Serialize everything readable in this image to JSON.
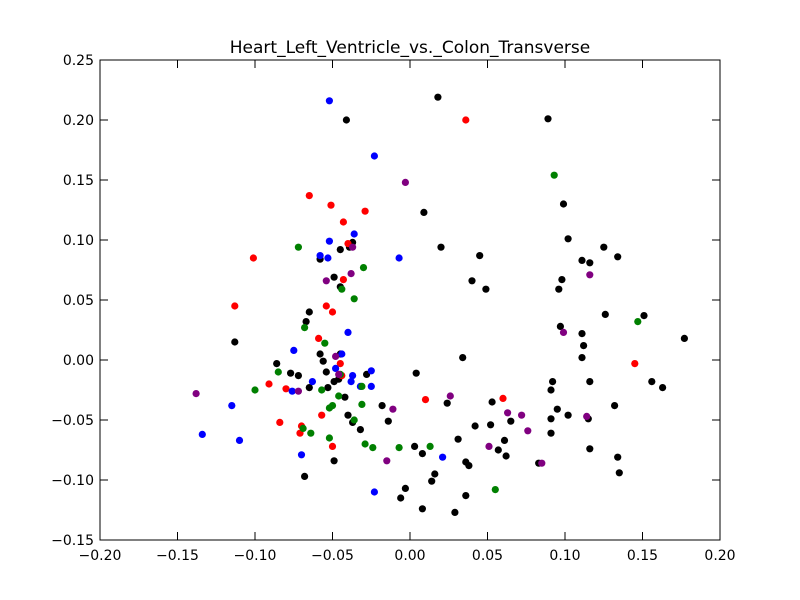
{
  "chart_data": {
    "type": "scatter",
    "title": "Heart_Left_Ventricle_vs._Colon_Transverse",
    "xlabel": "",
    "ylabel": "",
    "xlim": [
      -0.2,
      0.2
    ],
    "ylim": [
      -0.15,
      0.25
    ],
    "x_ticks": [
      -0.2,
      -0.15,
      -0.1,
      -0.05,
      0.0,
      0.05,
      0.1,
      0.15,
      0.2
    ],
    "x_tick_labels": [
      "−0.20",
      "−0.15",
      "−0.10",
      "−0.05",
      "0.00",
      "0.05",
      "0.10",
      "0.15",
      "0.20"
    ],
    "y_ticks": [
      -0.15,
      -0.1,
      -0.05,
      0.0,
      0.05,
      0.1,
      0.15,
      0.2,
      0.25
    ],
    "y_tick_labels": [
      "−0.15",
      "−0.10",
      "−0.05",
      "0.00",
      "0.05",
      "0.10",
      "0.15",
      "0.20",
      "0.25"
    ],
    "grid": false,
    "legend": "none",
    "series": [
      {
        "color": "#000000",
        "points": [
          [
            0.018,
            0.219
          ],
          [
            -0.041,
            0.2
          ],
          [
            0.089,
            0.201
          ],
          [
            0.009,
            0.123
          ],
          [
            0.099,
            0.13
          ],
          [
            -0.039,
            0.094
          ],
          [
            -0.037,
            0.098
          ],
          [
            -0.045,
            0.092
          ],
          [
            0.02,
            0.094
          ],
          [
            0.045,
            0.087
          ],
          [
            0.102,
            0.101
          ],
          [
            0.125,
            0.094
          ],
          [
            0.134,
            0.086
          ],
          [
            0.111,
            0.083
          ],
          [
            0.04,
            0.066
          ],
          [
            0.049,
            0.059
          ],
          [
            0.098,
            0.067
          ],
          [
            0.096,
            0.059
          ],
          [
            0.116,
            0.081
          ],
          [
            -0.049,
            0.069
          ],
          [
            -0.045,
            0.061
          ],
          [
            -0.058,
            0.084
          ],
          [
            -0.067,
            0.032
          ],
          [
            -0.065,
            0.04
          ],
          [
            -0.113,
            0.015
          ],
          [
            -0.086,
            -0.003
          ],
          [
            -0.077,
            -0.011
          ],
          [
            -0.072,
            -0.013
          ],
          [
            -0.065,
            -0.023
          ],
          [
            -0.058,
            0.005
          ],
          [
            -0.056,
            -0.001
          ],
          [
            -0.054,
            -0.01
          ],
          [
            -0.053,
            -0.023
          ],
          [
            -0.049,
            -0.018
          ],
          [
            -0.045,
            0.005
          ],
          [
            -0.046,
            -0.016
          ],
          [
            -0.042,
            -0.031
          ],
          [
            -0.04,
            -0.046
          ],
          [
            -0.037,
            -0.052
          ],
          [
            -0.032,
            -0.058
          ],
          [
            -0.028,
            -0.012
          ],
          [
            -0.018,
            -0.038
          ],
          [
            -0.014,
            -0.051
          ],
          [
            -0.049,
            -0.084
          ],
          [
            -0.068,
            -0.097
          ],
          [
            0.004,
            -0.011
          ],
          [
            0.034,
            0.002
          ],
          [
            0.097,
            0.028
          ],
          [
            0.111,
            0.022
          ],
          [
            0.112,
            0.012
          ],
          [
            0.111,
            0.002
          ],
          [
            0.126,
            0.038
          ],
          [
            0.151,
            0.037
          ],
          [
            0.177,
            0.018
          ],
          [
            0.156,
            -0.018
          ],
          [
            0.163,
            -0.023
          ],
          [
            0.116,
            -0.018
          ],
          [
            0.092,
            -0.018
          ],
          [
            0.091,
            -0.025
          ],
          [
            0.102,
            -0.046
          ],
          [
            0.095,
            -0.041
          ],
          [
            0.115,
            -0.049
          ],
          [
            0.132,
            -0.038
          ],
          [
            0.091,
            -0.049
          ],
          [
            0.091,
            -0.061
          ],
          [
            0.083,
            -0.086
          ],
          [
            0.116,
            -0.074
          ],
          [
            0.134,
            -0.081
          ],
          [
            0.135,
            -0.094
          ],
          [
            0.053,
            -0.035
          ],
          [
            0.052,
            -0.054
          ],
          [
            0.042,
            -0.055
          ],
          [
            0.061,
            -0.067
          ],
          [
            0.065,
            -0.051
          ],
          [
            0.057,
            -0.075
          ],
          [
            0.062,
            -0.08
          ],
          [
            0.031,
            -0.066
          ],
          [
            0.036,
            -0.085
          ],
          [
            0.038,
            -0.088
          ],
          [
            0.024,
            -0.036
          ],
          [
            0.003,
            -0.072
          ],
          [
            0.008,
            -0.078
          ],
          [
            0.016,
            -0.095
          ],
          [
            0.014,
            -0.101
          ],
          [
            -0.003,
            -0.107
          ],
          [
            -0.006,
            -0.115
          ],
          [
            0.008,
            -0.124
          ],
          [
            0.029,
            -0.127
          ],
          [
            0.036,
            -0.113
          ]
        ]
      },
      {
        "color": "#ff0000",
        "points": [
          [
            0.036,
            0.2
          ],
          [
            -0.065,
            0.137
          ],
          [
            -0.051,
            0.129
          ],
          [
            -0.029,
            0.124
          ],
          [
            -0.043,
            0.115
          ],
          [
            -0.101,
            0.085
          ],
          [
            -0.04,
            0.097
          ],
          [
            -0.043,
            0.067
          ],
          [
            -0.113,
            0.045
          ],
          [
            -0.054,
            0.045
          ],
          [
            -0.05,
            0.04
          ],
          [
            -0.059,
            0.018
          ],
          [
            -0.045,
            -0.003
          ],
          [
            -0.044,
            -0.013
          ],
          [
            -0.08,
            -0.024
          ],
          [
            -0.091,
            -0.02
          ],
          [
            -0.084,
            -0.052
          ],
          [
            -0.07,
            -0.055
          ],
          [
            -0.071,
            -0.061
          ],
          [
            -0.057,
            -0.046
          ],
          [
            -0.05,
            -0.072
          ],
          [
            0.01,
            -0.033
          ],
          [
            0.06,
            -0.032
          ],
          [
            0.145,
            -0.003
          ]
        ]
      },
      {
        "color": "#0000ff",
        "points": [
          [
            -0.052,
            0.216
          ],
          [
            -0.023,
            0.17
          ],
          [
            -0.036,
            0.105
          ],
          [
            -0.052,
            0.099
          ],
          [
            -0.058,
            0.087
          ],
          [
            -0.053,
            0.085
          ],
          [
            -0.007,
            0.085
          ],
          [
            -0.04,
            0.023
          ],
          [
            -0.075,
            0.008
          ],
          [
            -0.063,
            -0.018
          ],
          [
            -0.044,
            0.005
          ],
          [
            -0.048,
            -0.007
          ],
          [
            -0.076,
            -0.026
          ],
          [
            -0.037,
            -0.013
          ],
          [
            -0.038,
            -0.018
          ],
          [
            -0.025,
            -0.009
          ],
          [
            -0.032,
            -0.022
          ],
          [
            -0.025,
            -0.022
          ],
          [
            -0.115,
            -0.038
          ],
          [
            -0.134,
            -0.062
          ],
          [
            -0.11,
            -0.067
          ],
          [
            -0.07,
            -0.079
          ],
          [
            -0.023,
            -0.11
          ],
          [
            0.021,
            -0.081
          ]
        ]
      },
      {
        "color": "#008000",
        "points": [
          [
            0.093,
            0.154
          ],
          [
            -0.072,
            0.094
          ],
          [
            -0.03,
            0.077
          ],
          [
            -0.044,
            0.059
          ],
          [
            -0.036,
            0.051
          ],
          [
            -0.068,
            0.027
          ],
          [
            -0.055,
            0.014
          ],
          [
            -0.1,
            -0.025
          ],
          [
            -0.085,
            -0.01
          ],
          [
            -0.045,
            -0.012
          ],
          [
            -0.046,
            -0.03
          ],
          [
            -0.052,
            -0.04
          ],
          [
            -0.05,
            -0.038
          ],
          [
            -0.057,
            -0.025
          ],
          [
            -0.031,
            -0.022
          ],
          [
            -0.031,
            -0.037
          ],
          [
            -0.036,
            -0.05
          ],
          [
            -0.069,
            -0.057
          ],
          [
            -0.064,
            -0.061
          ],
          [
            -0.052,
            -0.065
          ],
          [
            -0.029,
            -0.07
          ],
          [
            -0.024,
            -0.073
          ],
          [
            -0.007,
            -0.073
          ],
          [
            0.013,
            -0.072
          ],
          [
            0.055,
            -0.108
          ],
          [
            0.147,
            0.032
          ]
        ]
      },
      {
        "color": "#800080",
        "points": [
          [
            -0.003,
            0.148
          ],
          [
            -0.037,
            0.094
          ],
          [
            -0.054,
            0.066
          ],
          [
            -0.038,
            0.072
          ],
          [
            -0.048,
            0.003
          ],
          [
            -0.046,
            -0.012
          ],
          [
            -0.072,
            -0.026
          ],
          [
            -0.138,
            -0.028
          ],
          [
            -0.011,
            -0.041
          ],
          [
            -0.015,
            -0.084
          ],
          [
            0.026,
            -0.03
          ],
          [
            0.051,
            -0.072
          ],
          [
            0.063,
            -0.044
          ],
          [
            0.072,
            -0.046
          ],
          [
            0.076,
            -0.059
          ],
          [
            0.085,
            -0.086
          ],
          [
            0.099,
            0.023
          ],
          [
            0.116,
            0.071
          ],
          [
            0.114,
            -0.047
          ]
        ]
      }
    ]
  }
}
